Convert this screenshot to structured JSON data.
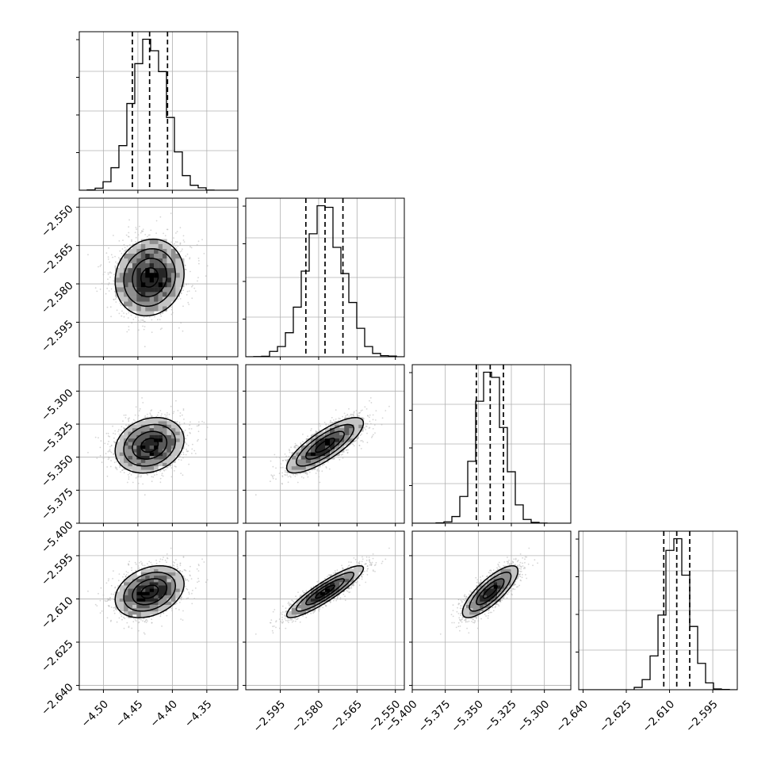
{
  "chart_data": {
    "type": "corner",
    "style": {
      "line_color": "#000000",
      "grid_color": "#b0b0b0",
      "points_color": "#b4b4b4",
      "density_colors": [
        "#ececec",
        "#c4c4c4",
        "#8f8f8f",
        "#5a5a5a",
        "#262626",
        "#000000"
      ]
    },
    "parameters": [
      {
        "mean": -4.433,
        "sd": 0.025,
        "quantiles": [
          -4.458,
          -4.433,
          -4.407
        ],
        "range": [
          -4.535,
          -4.305
        ],
        "ticks": [
          "−4.50",
          "−4.45",
          "−4.40",
          "−4.35"
        ],
        "tick_values": [
          -4.5,
          -4.45,
          -4.4,
          -4.35
        ]
      },
      {
        "mean": -2.5775,
        "sd": 0.0075,
        "quantiles": [
          -2.585,
          -2.5775,
          -2.5705
        ],
        "range": [
          -2.6085,
          -2.5465
        ],
        "ticks": [
          "−2.595",
          "−2.580",
          "−2.565",
          "−2.550"
        ],
        "tick_values": [
          -2.595,
          -2.58,
          -2.565,
          -2.55
        ]
      },
      {
        "mean": -5.341,
        "sd": 0.0105,
        "quantiles": [
          -5.3515,
          -5.341,
          -5.331
        ],
        "range": [
          -5.4,
          -5.28
        ],
        "ticks": [
          "−5.400",
          "−5.375",
          "−5.350",
          "−5.325",
          "−5.300"
        ],
        "tick_values": [
          -5.4,
          -5.375,
          -5.35,
          -5.325,
          -5.3
        ]
      },
      {
        "mean": -2.6075,
        "sd": 0.0045,
        "quantiles": [
          -2.612,
          -2.6075,
          -2.603
        ],
        "range": [
          -2.6415,
          -2.5865
        ],
        "ticks": [
          "−2.640",
          "−2.625",
          "−2.610",
          "−2.595"
        ],
        "tick_values": [
          -2.64,
          -2.625,
          -2.61,
          -2.595
        ]
      }
    ],
    "correlations": [
      {
        "i": 1,
        "j": 0,
        "rho": 0.1
      },
      {
        "i": 2,
        "j": 0,
        "rho": 0.2
      },
      {
        "i": 2,
        "j": 1,
        "rho": 0.8
      },
      {
        "i": 3,
        "j": 0,
        "rho": 0.3
      },
      {
        "i": 3,
        "j": 1,
        "rho": 0.9
      },
      {
        "i": 3,
        "j": 2,
        "rho": 0.8
      }
    ],
    "histogram_bins": 20,
    "density_bins": 20,
    "contour_levels": [
      0.5,
      1.0,
      1.5,
      2.0
    ],
    "sample_count": 4000
  }
}
